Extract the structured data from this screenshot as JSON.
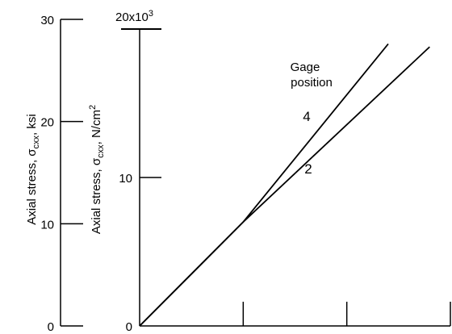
{
  "chart_data": {
    "type": "line",
    "title": "",
    "legend_title": [
      "Gage",
      "position"
    ],
    "ylabel_outer": {
      "base": "Axial stress, ",
      "symbol": "σ",
      "subscript": "cxx",
      "unit": ", ksi"
    },
    "ylabel_inner": {
      "base": "Axial stress, ",
      "symbol": "σ",
      "subscript": "cxx",
      "unit": ", N/cm",
      "unit_sup": "2"
    },
    "outer_axis": {
      "ticks": [
        0,
        10,
        20,
        30
      ],
      "tick_labels": [
        "0",
        "10",
        "20",
        "30"
      ],
      "ylim": [
        0,
        30
      ]
    },
    "inner_axis": {
      "ticks": [
        0,
        10,
        20
      ],
      "tick_labels": [
        "0",
        "10",
        "20x10"
      ],
      "top_label_sup": "3",
      "ylim": [
        0,
        20
      ],
      "multiplier": 1000
    },
    "x_axis": {
      "xlim": [
        0,
        3
      ],
      "ticks": [
        1,
        2,
        3
      ],
      "tick_labels": [
        "",
        "",
        ""
      ]
    },
    "series": [
      {
        "name": "4",
        "x": [
          0,
          1,
          2.4
        ],
        "y": [
          0,
          7,
          19.0
        ]
      },
      {
        "name": "2",
        "x": [
          0,
          1,
          2.8
        ],
        "y": [
          0,
          7,
          18.8
        ]
      }
    ]
  }
}
